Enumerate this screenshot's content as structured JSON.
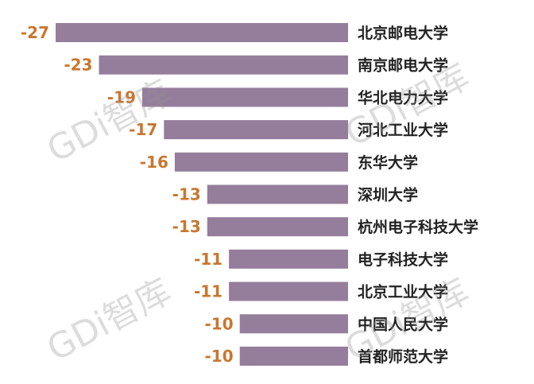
{
  "chart_data": {
    "type": "bar",
    "orientation": "horizontal",
    "categories": [
      "北京邮电大学",
      "南京邮电大学",
      "华北电力大学",
      "河北工业大学",
      "东华大学",
      "深圳大学",
      "杭州电子科技大学",
      "电子科技大学",
      "北京工业大学",
      "中国人民大学",
      "首都师范大学"
    ],
    "values": [
      -27,
      -23,
      -19,
      -17,
      -16,
      -13,
      -13,
      -11,
      -11,
      -10,
      -10
    ],
    "xlim": [
      -27,
      0
    ],
    "grid": false,
    "legend": "none",
    "bar_color": "#957D9C",
    "value_label_color": "#C8772F"
  },
  "watermark": {
    "text": "GDi智库"
  }
}
